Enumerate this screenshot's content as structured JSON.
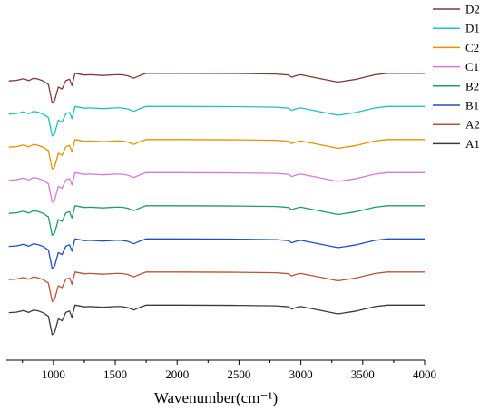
{
  "chart_data": {
    "type": "line",
    "xlabel": "Wavenumber(cm⁻¹)",
    "ylabel": "",
    "xlim": [
      620,
      4000
    ],
    "x_ticks": [
      1000,
      1500,
      2000,
      2500,
      3000,
      3500,
      4000
    ],
    "y_ticks_shown": false,
    "grid": false,
    "legend_position": "top-right",
    "series": [
      {
        "name": "D2",
        "color": "#7b3b36",
        "offset": 7,
        "points": [
          [
            640,
            0.05
          ],
          [
            700,
            0.07
          ],
          [
            760,
            0.14
          ],
          [
            800,
            0.06
          ],
          [
            840,
            0.16
          ],
          [
            880,
            0.12
          ],
          [
            920,
            0.04
          ],
          [
            960,
            -0.1
          ],
          [
            990,
            -0.85
          ],
          [
            1010,
            -0.75
          ],
          [
            1040,
            -0.2
          ],
          [
            1070,
            -0.28
          ],
          [
            1100,
            0.06
          ],
          [
            1130,
            0.12
          ],
          [
            1150,
            -0.14
          ],
          [
            1175,
            0.36
          ],
          [
            1250,
            0.29
          ],
          [
            1300,
            0.3
          ],
          [
            1400,
            0.27
          ],
          [
            1500,
            0.3
          ],
          [
            1550,
            0.3
          ],
          [
            1600,
            0.26
          ],
          [
            1650,
            0.16
          ],
          [
            1700,
            0.27
          ],
          [
            1750,
            0.36
          ],
          [
            2000,
            0.36
          ],
          [
            2500,
            0.35
          ],
          [
            2800,
            0.33
          ],
          [
            2900,
            0.29
          ],
          [
            2925,
            0.2
          ],
          [
            2960,
            0.26
          ],
          [
            3000,
            0.3
          ],
          [
            3150,
            0.15
          ],
          [
            3300,
            0.0
          ],
          [
            3450,
            0.12
          ],
          [
            3600,
            0.3
          ],
          [
            3700,
            0.36
          ],
          [
            4000,
            0.36
          ]
        ]
      },
      {
        "name": "D1",
        "color": "#1cc4c0",
        "offset": 6,
        "points": [
          [
            640,
            0.05
          ],
          [
            700,
            0.07
          ],
          [
            760,
            0.14
          ],
          [
            800,
            0.06
          ],
          [
            840,
            0.16
          ],
          [
            880,
            0.12
          ],
          [
            920,
            0.04
          ],
          [
            960,
            -0.1
          ],
          [
            990,
            -0.85
          ],
          [
            1010,
            -0.75
          ],
          [
            1040,
            -0.2
          ],
          [
            1070,
            -0.28
          ],
          [
            1100,
            0.06
          ],
          [
            1130,
            0.12
          ],
          [
            1150,
            -0.14
          ],
          [
            1175,
            0.36
          ],
          [
            1250,
            0.29
          ],
          [
            1300,
            0.3
          ],
          [
            1400,
            0.27
          ],
          [
            1500,
            0.3
          ],
          [
            1550,
            0.3
          ],
          [
            1600,
            0.26
          ],
          [
            1650,
            0.16
          ],
          [
            1700,
            0.27
          ],
          [
            1750,
            0.36
          ],
          [
            2000,
            0.36
          ],
          [
            2500,
            0.35
          ],
          [
            2800,
            0.33
          ],
          [
            2900,
            0.29
          ],
          [
            2925,
            0.2
          ],
          [
            2960,
            0.26
          ],
          [
            3000,
            0.3
          ],
          [
            3150,
            0.15
          ],
          [
            3300,
            0.0
          ],
          [
            3450,
            0.12
          ],
          [
            3600,
            0.3
          ],
          [
            3700,
            0.36
          ],
          [
            4000,
            0.36
          ]
        ]
      },
      {
        "name": "C2",
        "color": "#e69100",
        "offset": 5,
        "points": [
          [
            640,
            0.05
          ],
          [
            700,
            0.07
          ],
          [
            760,
            0.14
          ],
          [
            800,
            0.06
          ],
          [
            840,
            0.16
          ],
          [
            880,
            0.12
          ],
          [
            920,
            0.04
          ],
          [
            960,
            -0.1
          ],
          [
            990,
            -0.85
          ],
          [
            1010,
            -0.75
          ],
          [
            1040,
            -0.2
          ],
          [
            1070,
            -0.28
          ],
          [
            1100,
            0.06
          ],
          [
            1130,
            0.12
          ],
          [
            1150,
            -0.14
          ],
          [
            1175,
            0.36
          ],
          [
            1250,
            0.29
          ],
          [
            1300,
            0.3
          ],
          [
            1400,
            0.27
          ],
          [
            1500,
            0.3
          ],
          [
            1550,
            0.3
          ],
          [
            1600,
            0.26
          ],
          [
            1650,
            0.16
          ],
          [
            1700,
            0.27
          ],
          [
            1750,
            0.36
          ],
          [
            2000,
            0.36
          ],
          [
            2500,
            0.35
          ],
          [
            2800,
            0.33
          ],
          [
            2900,
            0.29
          ],
          [
            2925,
            0.2
          ],
          [
            2960,
            0.26
          ],
          [
            3000,
            0.3
          ],
          [
            3150,
            0.15
          ],
          [
            3300,
            0.0
          ],
          [
            3450,
            0.12
          ],
          [
            3600,
            0.3
          ],
          [
            3700,
            0.36
          ],
          [
            4000,
            0.36
          ]
        ]
      },
      {
        "name": "C1",
        "color": "#d67ad6",
        "offset": 4,
        "points": [
          [
            640,
            0.05
          ],
          [
            700,
            0.07
          ],
          [
            760,
            0.14
          ],
          [
            800,
            0.06
          ],
          [
            840,
            0.16
          ],
          [
            880,
            0.12
          ],
          [
            920,
            0.04
          ],
          [
            960,
            -0.1
          ],
          [
            990,
            -0.85
          ],
          [
            1010,
            -0.75
          ],
          [
            1040,
            -0.2
          ],
          [
            1070,
            -0.28
          ],
          [
            1100,
            0.06
          ],
          [
            1130,
            0.12
          ],
          [
            1150,
            -0.14
          ],
          [
            1175,
            0.36
          ],
          [
            1250,
            0.29
          ],
          [
            1300,
            0.3
          ],
          [
            1400,
            0.27
          ],
          [
            1500,
            0.3
          ],
          [
            1550,
            0.3
          ],
          [
            1600,
            0.26
          ],
          [
            1650,
            0.16
          ],
          [
            1700,
            0.27
          ],
          [
            1750,
            0.36
          ],
          [
            2000,
            0.36
          ],
          [
            2500,
            0.35
          ],
          [
            2800,
            0.33
          ],
          [
            2900,
            0.29
          ],
          [
            2925,
            0.2
          ],
          [
            2960,
            0.26
          ],
          [
            3000,
            0.3
          ],
          [
            3150,
            0.15
          ],
          [
            3300,
            0.0
          ],
          [
            3450,
            0.12
          ],
          [
            3600,
            0.3
          ],
          [
            3700,
            0.36
          ],
          [
            4000,
            0.36
          ]
        ]
      },
      {
        "name": "B2",
        "color": "#1f9b6b",
        "offset": 3,
        "points": [
          [
            640,
            0.05
          ],
          [
            700,
            0.07
          ],
          [
            760,
            0.14
          ],
          [
            800,
            0.06
          ],
          [
            840,
            0.16
          ],
          [
            880,
            0.12
          ],
          [
            920,
            0.04
          ],
          [
            960,
            -0.1
          ],
          [
            990,
            -0.85
          ],
          [
            1010,
            -0.75
          ],
          [
            1040,
            -0.2
          ],
          [
            1070,
            -0.28
          ],
          [
            1100,
            0.06
          ],
          [
            1130,
            0.12
          ],
          [
            1150,
            -0.14
          ],
          [
            1175,
            0.36
          ],
          [
            1250,
            0.29
          ],
          [
            1300,
            0.3
          ],
          [
            1400,
            0.27
          ],
          [
            1500,
            0.3
          ],
          [
            1550,
            0.3
          ],
          [
            1600,
            0.26
          ],
          [
            1650,
            0.16
          ],
          [
            1700,
            0.27
          ],
          [
            1750,
            0.36
          ],
          [
            2000,
            0.36
          ],
          [
            2500,
            0.35
          ],
          [
            2800,
            0.33
          ],
          [
            2900,
            0.29
          ],
          [
            2925,
            0.2
          ],
          [
            2960,
            0.26
          ],
          [
            3000,
            0.3
          ],
          [
            3150,
            0.15
          ],
          [
            3300,
            0.0
          ],
          [
            3450,
            0.12
          ],
          [
            3600,
            0.3
          ],
          [
            3700,
            0.36
          ],
          [
            4000,
            0.36
          ]
        ]
      },
      {
        "name": "B1",
        "color": "#1f4fc2",
        "offset": 2,
        "points": [
          [
            640,
            0.05
          ],
          [
            700,
            0.07
          ],
          [
            760,
            0.14
          ],
          [
            800,
            0.06
          ],
          [
            840,
            0.16
          ],
          [
            880,
            0.12
          ],
          [
            920,
            0.04
          ],
          [
            960,
            -0.1
          ],
          [
            990,
            -0.85
          ],
          [
            1010,
            -0.75
          ],
          [
            1040,
            -0.2
          ],
          [
            1070,
            -0.28
          ],
          [
            1100,
            0.06
          ],
          [
            1130,
            0.12
          ],
          [
            1150,
            -0.14
          ],
          [
            1175,
            0.36
          ],
          [
            1250,
            0.29
          ],
          [
            1300,
            0.3
          ],
          [
            1400,
            0.27
          ],
          [
            1500,
            0.3
          ],
          [
            1550,
            0.3
          ],
          [
            1600,
            0.26
          ],
          [
            1650,
            0.16
          ],
          [
            1700,
            0.27
          ],
          [
            1750,
            0.36
          ],
          [
            2000,
            0.36
          ],
          [
            2500,
            0.35
          ],
          [
            2800,
            0.33
          ],
          [
            2900,
            0.29
          ],
          [
            2925,
            0.2
          ],
          [
            2960,
            0.26
          ],
          [
            3000,
            0.3
          ],
          [
            3150,
            0.15
          ],
          [
            3300,
            0.0
          ],
          [
            3450,
            0.12
          ],
          [
            3600,
            0.3
          ],
          [
            3700,
            0.36
          ],
          [
            4000,
            0.36
          ]
        ]
      },
      {
        "name": "A2",
        "color": "#b5553a",
        "offset": 1,
        "points": [
          [
            640,
            0.05
          ],
          [
            700,
            0.07
          ],
          [
            760,
            0.14
          ],
          [
            800,
            0.06
          ],
          [
            840,
            0.16
          ],
          [
            880,
            0.12
          ],
          [
            920,
            0.04
          ],
          [
            960,
            -0.1
          ],
          [
            990,
            -0.85
          ],
          [
            1010,
            -0.75
          ],
          [
            1040,
            -0.2
          ],
          [
            1070,
            -0.28
          ],
          [
            1100,
            0.06
          ],
          [
            1130,
            0.12
          ],
          [
            1150,
            -0.14
          ],
          [
            1175,
            0.36
          ],
          [
            1250,
            0.29
          ],
          [
            1300,
            0.3
          ],
          [
            1400,
            0.27
          ],
          [
            1500,
            0.3
          ],
          [
            1550,
            0.3
          ],
          [
            1600,
            0.26
          ],
          [
            1650,
            0.16
          ],
          [
            1700,
            0.27
          ],
          [
            1750,
            0.36
          ],
          [
            2000,
            0.36
          ],
          [
            2500,
            0.35
          ],
          [
            2800,
            0.33
          ],
          [
            2900,
            0.29
          ],
          [
            2925,
            0.2
          ],
          [
            2960,
            0.26
          ],
          [
            3000,
            0.3
          ],
          [
            3150,
            0.15
          ],
          [
            3300,
            0.0
          ],
          [
            3450,
            0.12
          ],
          [
            3600,
            0.3
          ],
          [
            3700,
            0.36
          ],
          [
            4000,
            0.36
          ]
        ]
      },
      {
        "name": "A1",
        "color": "#3a3a3a",
        "offset": 0,
        "points": [
          [
            640,
            0.05
          ],
          [
            700,
            0.07
          ],
          [
            760,
            0.14
          ],
          [
            800,
            0.06
          ],
          [
            840,
            0.16
          ],
          [
            880,
            0.12
          ],
          [
            920,
            0.04
          ],
          [
            960,
            -0.1
          ],
          [
            990,
            -0.85
          ],
          [
            1010,
            -0.75
          ],
          [
            1040,
            -0.2
          ],
          [
            1070,
            -0.28
          ],
          [
            1100,
            0.06
          ],
          [
            1130,
            0.12
          ],
          [
            1150,
            -0.14
          ],
          [
            1175,
            0.36
          ],
          [
            1250,
            0.29
          ],
          [
            1300,
            0.3
          ],
          [
            1400,
            0.27
          ],
          [
            1500,
            0.3
          ],
          [
            1550,
            0.3
          ],
          [
            1600,
            0.26
          ],
          [
            1650,
            0.16
          ],
          [
            1700,
            0.27
          ],
          [
            1750,
            0.36
          ],
          [
            2000,
            0.36
          ],
          [
            2500,
            0.35
          ],
          [
            2800,
            0.33
          ],
          [
            2900,
            0.29
          ],
          [
            2925,
            0.2
          ],
          [
            2960,
            0.26
          ],
          [
            3000,
            0.3
          ],
          [
            3150,
            0.15
          ],
          [
            3300,
            0.0
          ],
          [
            3450,
            0.12
          ],
          [
            3600,
            0.3
          ],
          [
            3700,
            0.36
          ],
          [
            4000,
            0.36
          ]
        ]
      }
    ]
  }
}
